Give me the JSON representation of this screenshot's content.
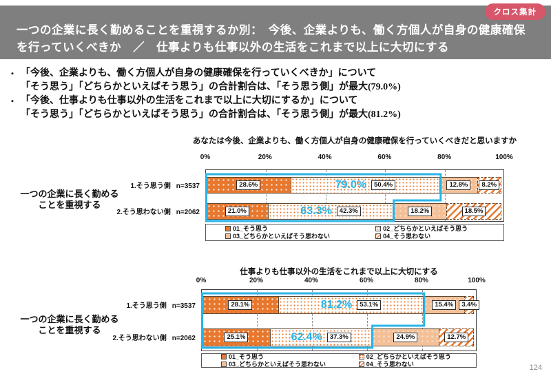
{
  "badge": "クロス集計",
  "bullet_char": "・",
  "page_number": "124",
  "header": {
    "line1": "一つの企業に長く勤めることを重視するか別：　今後、企業よりも、働く方個人が自身の健康確保",
    "line2": "を行っていくべきか　／　仕事よりも仕事以外の生活をこれまで以上に大切にする"
  },
  "bullets": [
    {
      "line1": "「今後、企業よりも、働く方個人が自身の健康確保を行っていくべきか」について",
      "line2": "「そう思う」「どちらかといえばそう思う」の合計割合は、「そう思う側」が最大(79.0%)"
    },
    {
      "line1": "「今後、仕事よりも仕事以外の生活をこれまで以上に大切にするか」について",
      "line2": "「そう思う」「どちらかといえばそう思う」の合計割合は、「そう思う側」が最大(81.2%)"
    }
  ],
  "colors": {
    "orange": "#e8782e",
    "peach": "#f4c098",
    "cyan": "#29b4e8",
    "header_gray": "#7f7f7f",
    "badge_red": "#d7566a",
    "page_number_gray": "#8a8a8a"
  },
  "chart_data": [
    {
      "type": "bar",
      "variant": "horizontal-stacked-100",
      "title": "あなたは今後、企業よりも、働く方個人が自身の健康確保を行っていくべきだと思いますか",
      "group_label": [
        "一つの企業に長く勤める",
        "ことを重視する"
      ],
      "axis_ticks": [
        "0%",
        "20%",
        "40%",
        "60%",
        "80%",
        "100%"
      ],
      "xlim": [
        0,
        100
      ],
      "grid": "dashed-verticals-at-20",
      "legend": [
        "01_そう思う",
        "02_どちらかといえばそう思う",
        "03_どちらかといえばそう思わない",
        "04_そう思わない"
      ],
      "legend_position": "bottom-box",
      "rows": [
        {
          "label": "1.そう思う側",
          "n": "n=3537",
          "values": [
            28.6,
            50.4,
            12.8,
            8.2
          ],
          "agree_total": 79.0
        },
        {
          "label": "2.そう思わない側",
          "n": "n=2062",
          "values": [
            21.0,
            42.3,
            18.2,
            18.5
          ],
          "agree_total": 63.3
        }
      ]
    },
    {
      "type": "bar",
      "variant": "horizontal-stacked-100",
      "title": "仕事よりも仕事以外の生活をこれまで以上に大切にする",
      "group_label": [
        "一つの企業に長く勤める",
        "ことを重視する"
      ],
      "axis_ticks": [
        "0%",
        "20%",
        "40%",
        "60%",
        "80%",
        "100%"
      ],
      "xlim": [
        0,
        100
      ],
      "grid": "dashed-verticals-at-20",
      "legend": [
        "01_そう思う",
        "02_どちらかといえばそう思う",
        "03_どちらかといえばそう思わない",
        "04_そう思わない"
      ],
      "legend_position": "bottom-box",
      "rows": [
        {
          "label": "1.そう思う側",
          "n": "n=3537",
          "values": [
            28.1,
            53.1,
            15.4,
            3.4
          ],
          "agree_total": 81.2
        },
        {
          "label": "2.そう思わない側",
          "n": "n=2062",
          "values": [
            25.1,
            37.3,
            24.9,
            12.7
          ],
          "agree_total": 62.4
        }
      ]
    }
  ]
}
